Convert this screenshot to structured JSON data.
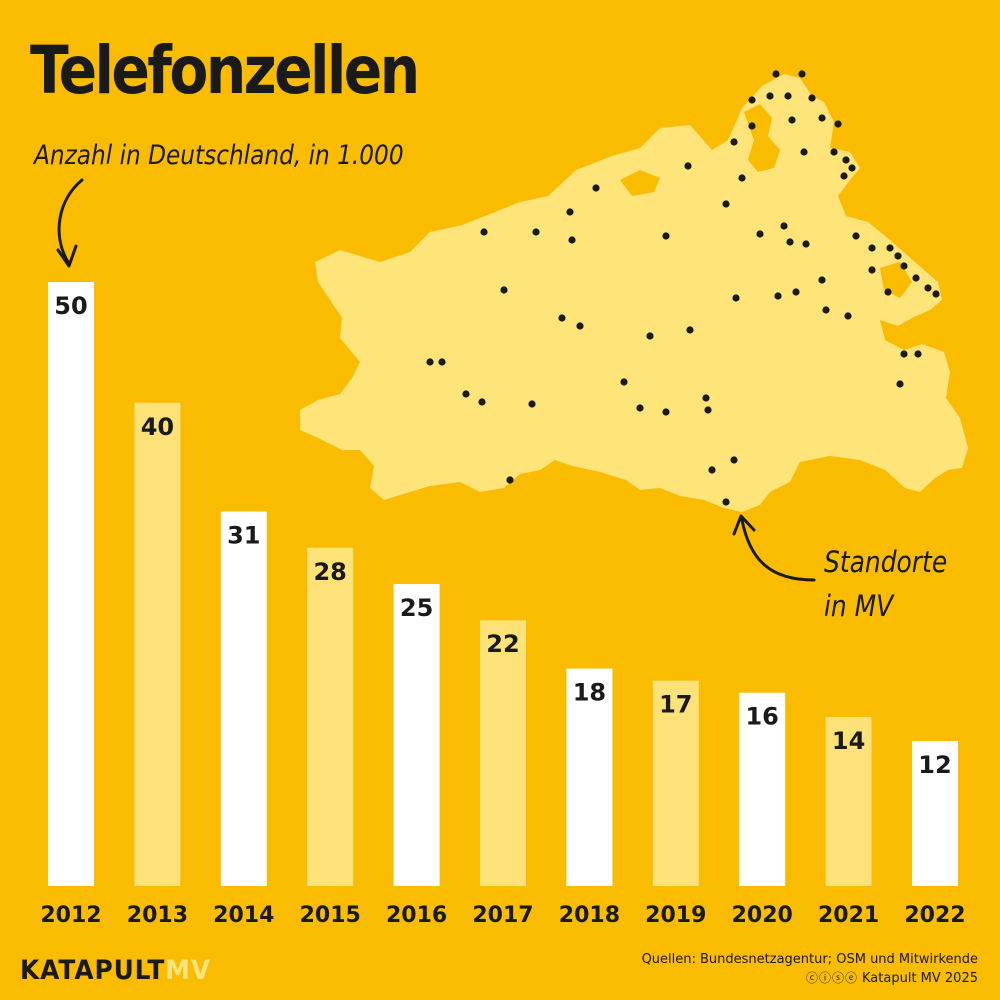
{
  "title": "Telefonzellen",
  "subtitle": "Anzahl in Deutschland, in 1.000",
  "map_label": [
    "Standorte",
    "in MV"
  ],
  "brand": {
    "main": "KATAPULT",
    "suffix": "MV"
  },
  "source": "Quellen: Bundesnetzagentur; OSM und Mitwirkende",
  "license": "Katapult MV 2025",
  "license_icons": [
    "cc-icon",
    "by-icon",
    "nc-icon",
    "nd-icon"
  ],
  "colors": {
    "background": "#F9BC00",
    "bar_white": "#FFFFFF",
    "bar_light": "#FDE27A",
    "map_fill": "#FFE47A",
    "dot": "#1A1A1A"
  },
  "chart_data": {
    "type": "bar",
    "title": "Telefonzellen",
    "subtitle": "Anzahl in Deutschland, in 1.000",
    "categories": [
      "2012",
      "2013",
      "2014",
      "2015",
      "2016",
      "2017",
      "2018",
      "2019",
      "2020",
      "2021",
      "2022"
    ],
    "values": [
      50,
      40,
      31,
      28,
      25,
      22,
      18,
      17,
      16,
      14,
      12
    ],
    "ylim": [
      0,
      50
    ],
    "grid": false,
    "bar_colors": [
      "white",
      "light",
      "white",
      "light",
      "white",
      "light",
      "white",
      "light",
      "white",
      "light",
      "white"
    ],
    "data_labels": [
      "50",
      "40",
      "31",
      "28",
      "25",
      "22",
      "18",
      "17",
      "16",
      "14",
      "12"
    ]
  }
}
